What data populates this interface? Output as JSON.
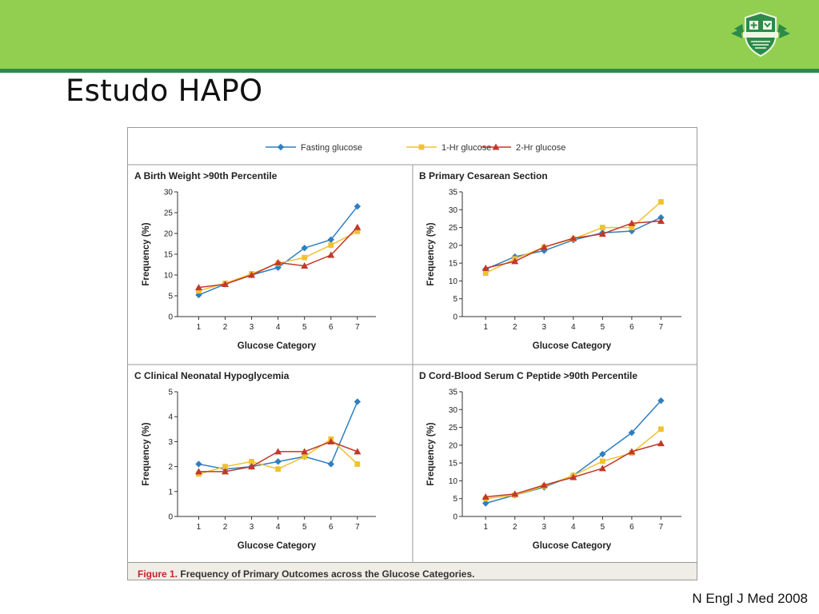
{
  "slide": {
    "title": "Estudo HAPO",
    "citation": "N Engl J Med 2008",
    "accent": "#92cf50",
    "accent_dark": "#2c8a4a"
  },
  "figure": {
    "caption_label": "Figure 1.",
    "caption_text": "Frequency of Primary Outcomes across the Glucose Categories.",
    "legend": [
      {
        "name": "Fasting glucose",
        "color": "#2f7fc1",
        "marker": "diamond"
      },
      {
        "name": "1-Hr glucose",
        "color": "#f2c12e",
        "marker": "square"
      },
      {
        "name": "2-Hr glucose",
        "color": "#c0392b",
        "marker": "triangle"
      }
    ]
  },
  "chart_data": [
    {
      "type": "line",
      "letter": "A",
      "title": "Birth Weight >90th Percentile",
      "xlabel": "Glucose Category",
      "ylabel": "Frequency (%)",
      "x": [
        1,
        2,
        3,
        4,
        5,
        6,
        7
      ],
      "ylim": [
        0,
        30
      ],
      "yticks": [
        0,
        5,
        10,
        15,
        20,
        25,
        30
      ],
      "series": [
        {
          "name": "Fasting glucose",
          "values": [
            5.2,
            7.8,
            10.0,
            11.8,
            16.5,
            18.5,
            26.5
          ]
        },
        {
          "name": "1-Hr glucose",
          "values": [
            6.2,
            8.0,
            10.3,
            12.8,
            14.2,
            17.2,
            20.5
          ]
        },
        {
          "name": "2-Hr glucose",
          "values": [
            7.0,
            7.8,
            10.0,
            13.0,
            12.2,
            14.8,
            21.5
          ]
        }
      ]
    },
    {
      "type": "line",
      "letter": "B",
      "title": "Primary Cesarean Section",
      "xlabel": "Glucose Category",
      "ylabel": "Frequency (%)",
      "x": [
        1,
        2,
        3,
        4,
        5,
        6,
        7
      ],
      "ylim": [
        0,
        35
      ],
      "yticks": [
        0,
        5,
        10,
        15,
        20,
        25,
        30,
        35
      ],
      "series": [
        {
          "name": "Fasting glucose",
          "values": [
            13.3,
            16.8,
            18.5,
            21.5,
            23.5,
            24.0,
            27.8
          ]
        },
        {
          "name": "1-Hr glucose",
          "values": [
            12.2,
            16.2,
            19.5,
            21.8,
            25.0,
            25.0,
            32.2
          ]
        },
        {
          "name": "2-Hr glucose",
          "values": [
            13.6,
            15.5,
            19.5,
            22.0,
            23.2,
            26.2,
            26.8
          ]
        }
      ]
    },
    {
      "type": "line",
      "letter": "C",
      "title": "Clinical Neonatal Hypoglycemia",
      "xlabel": "Glucose Category",
      "ylabel": "Frequency (%)",
      "x": [
        1,
        2,
        3,
        4,
        5,
        6,
        7
      ],
      "ylim": [
        0,
        5
      ],
      "yticks": [
        0,
        1,
        2,
        3,
        4,
        5
      ],
      "series": [
        {
          "name": "Fasting glucose",
          "values": [
            2.1,
            1.9,
            2.0,
            2.2,
            2.4,
            2.1,
            4.6
          ]
        },
        {
          "name": "1-Hr glucose",
          "values": [
            1.7,
            2.0,
            2.2,
            1.9,
            2.4,
            3.1,
            2.1
          ]
        },
        {
          "name": "2-Hr glucose",
          "values": [
            1.8,
            1.8,
            2.0,
            2.6,
            2.6,
            3.0,
            2.6
          ]
        }
      ]
    },
    {
      "type": "line",
      "letter": "D",
      "title": "Cord-Blood Serum C Peptide >90th Percentile",
      "xlabel": "Glucose Category",
      "ylabel": "Frequency (%)",
      "x": [
        1,
        2,
        3,
        4,
        5,
        6,
        7
      ],
      "ylim": [
        0,
        35
      ],
      "yticks": [
        0,
        5,
        10,
        15,
        20,
        25,
        30,
        35
      ],
      "series": [
        {
          "name": "Fasting glucose",
          "values": [
            3.7,
            6.0,
            8.2,
            11.5,
            17.5,
            23.5,
            32.5
          ]
        },
        {
          "name": "1-Hr glucose",
          "values": [
            5.0,
            6.0,
            8.5,
            11.5,
            15.5,
            17.8,
            24.5
          ]
        },
        {
          "name": "2-Hr glucose",
          "values": [
            5.5,
            6.3,
            8.8,
            11.0,
            13.5,
            18.2,
            20.5
          ]
        }
      ]
    }
  ]
}
